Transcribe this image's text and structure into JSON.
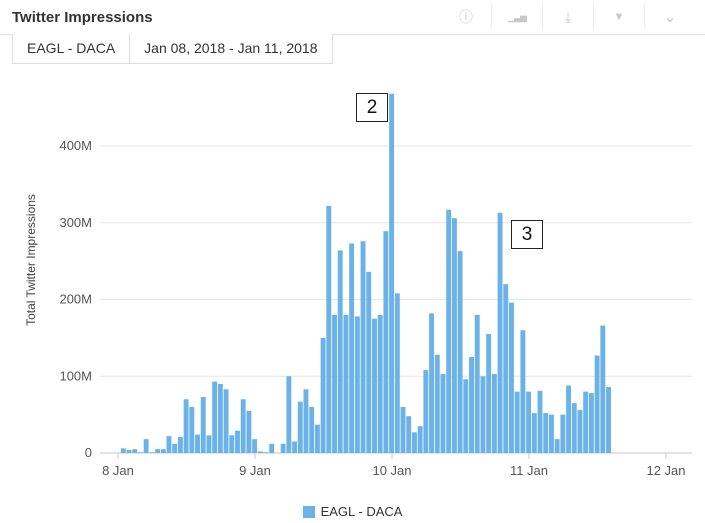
{
  "header": {
    "title": "Twitter Impressions"
  },
  "toolbar": [
    {
      "name": "info-icon",
      "glyph": "ⓘ"
    },
    {
      "name": "bar-chart-icon",
      "glyph": "▁▃▅"
    },
    {
      "name": "download-icon",
      "glyph": "⤓"
    },
    {
      "name": "filter-icon",
      "glyph": "▼"
    },
    {
      "name": "chevron-down-icon",
      "glyph": "⌄"
    }
  ],
  "filters": {
    "account": "EAGL - DACA",
    "date_range": "Jan 08, 2018 - Jan 11, 2018"
  },
  "annotations": [
    {
      "label": "2"
    },
    {
      "label": "3"
    }
  ],
  "chart_data": {
    "type": "bar",
    "ylabel": "Total Twitter Impressions",
    "ylim": [
      0,
      470
    ],
    "yticks": [
      {
        "value": 0,
        "label": "0"
      },
      {
        "value": 100,
        "label": "100M"
      },
      {
        "value": 200,
        "label": "200M"
      },
      {
        "value": 300,
        "label": "300M"
      },
      {
        "value": 400,
        "label": "400M"
      }
    ],
    "xlim": [
      0,
      104
    ],
    "xticks": [
      {
        "value": 0,
        "label": "8 Jan"
      },
      {
        "value": 24,
        "label": "9 Jan"
      },
      {
        "value": 48,
        "label": "10 Jan"
      },
      {
        "value": 72,
        "label": "11 Jan"
      },
      {
        "value": 96,
        "label": "12 Jan"
      }
    ],
    "grid": true,
    "legend_position": "bottom",
    "color": "#6ab2e7",
    "series": [
      {
        "name": "EAGL - DACA",
        "x_start": 1,
        "values": [
          6,
          4,
          5,
          1,
          18,
          1,
          5,
          5,
          22,
          12,
          21,
          70,
          60,
          24,
          73,
          23,
          93,
          90,
          83,
          23,
          29,
          70,
          55,
          18,
          2,
          1,
          12,
          0,
          12,
          100,
          15,
          67,
          83,
          60,
          37,
          150,
          322,
          180,
          264,
          180,
          273,
          178,
          276,
          236,
          175,
          180,
          289,
          468,
          208,
          60,
          48,
          27,
          35,
          108,
          182,
          128,
          103,
          317,
          306,
          263,
          96,
          125,
          180,
          100,
          155,
          103,
          313,
          220,
          196,
          80,
          160,
          80,
          52,
          81,
          52,
          50,
          18,
          50,
          88,
          65,
          56,
          80,
          78,
          127,
          166,
          86
        ]
      }
    ]
  }
}
